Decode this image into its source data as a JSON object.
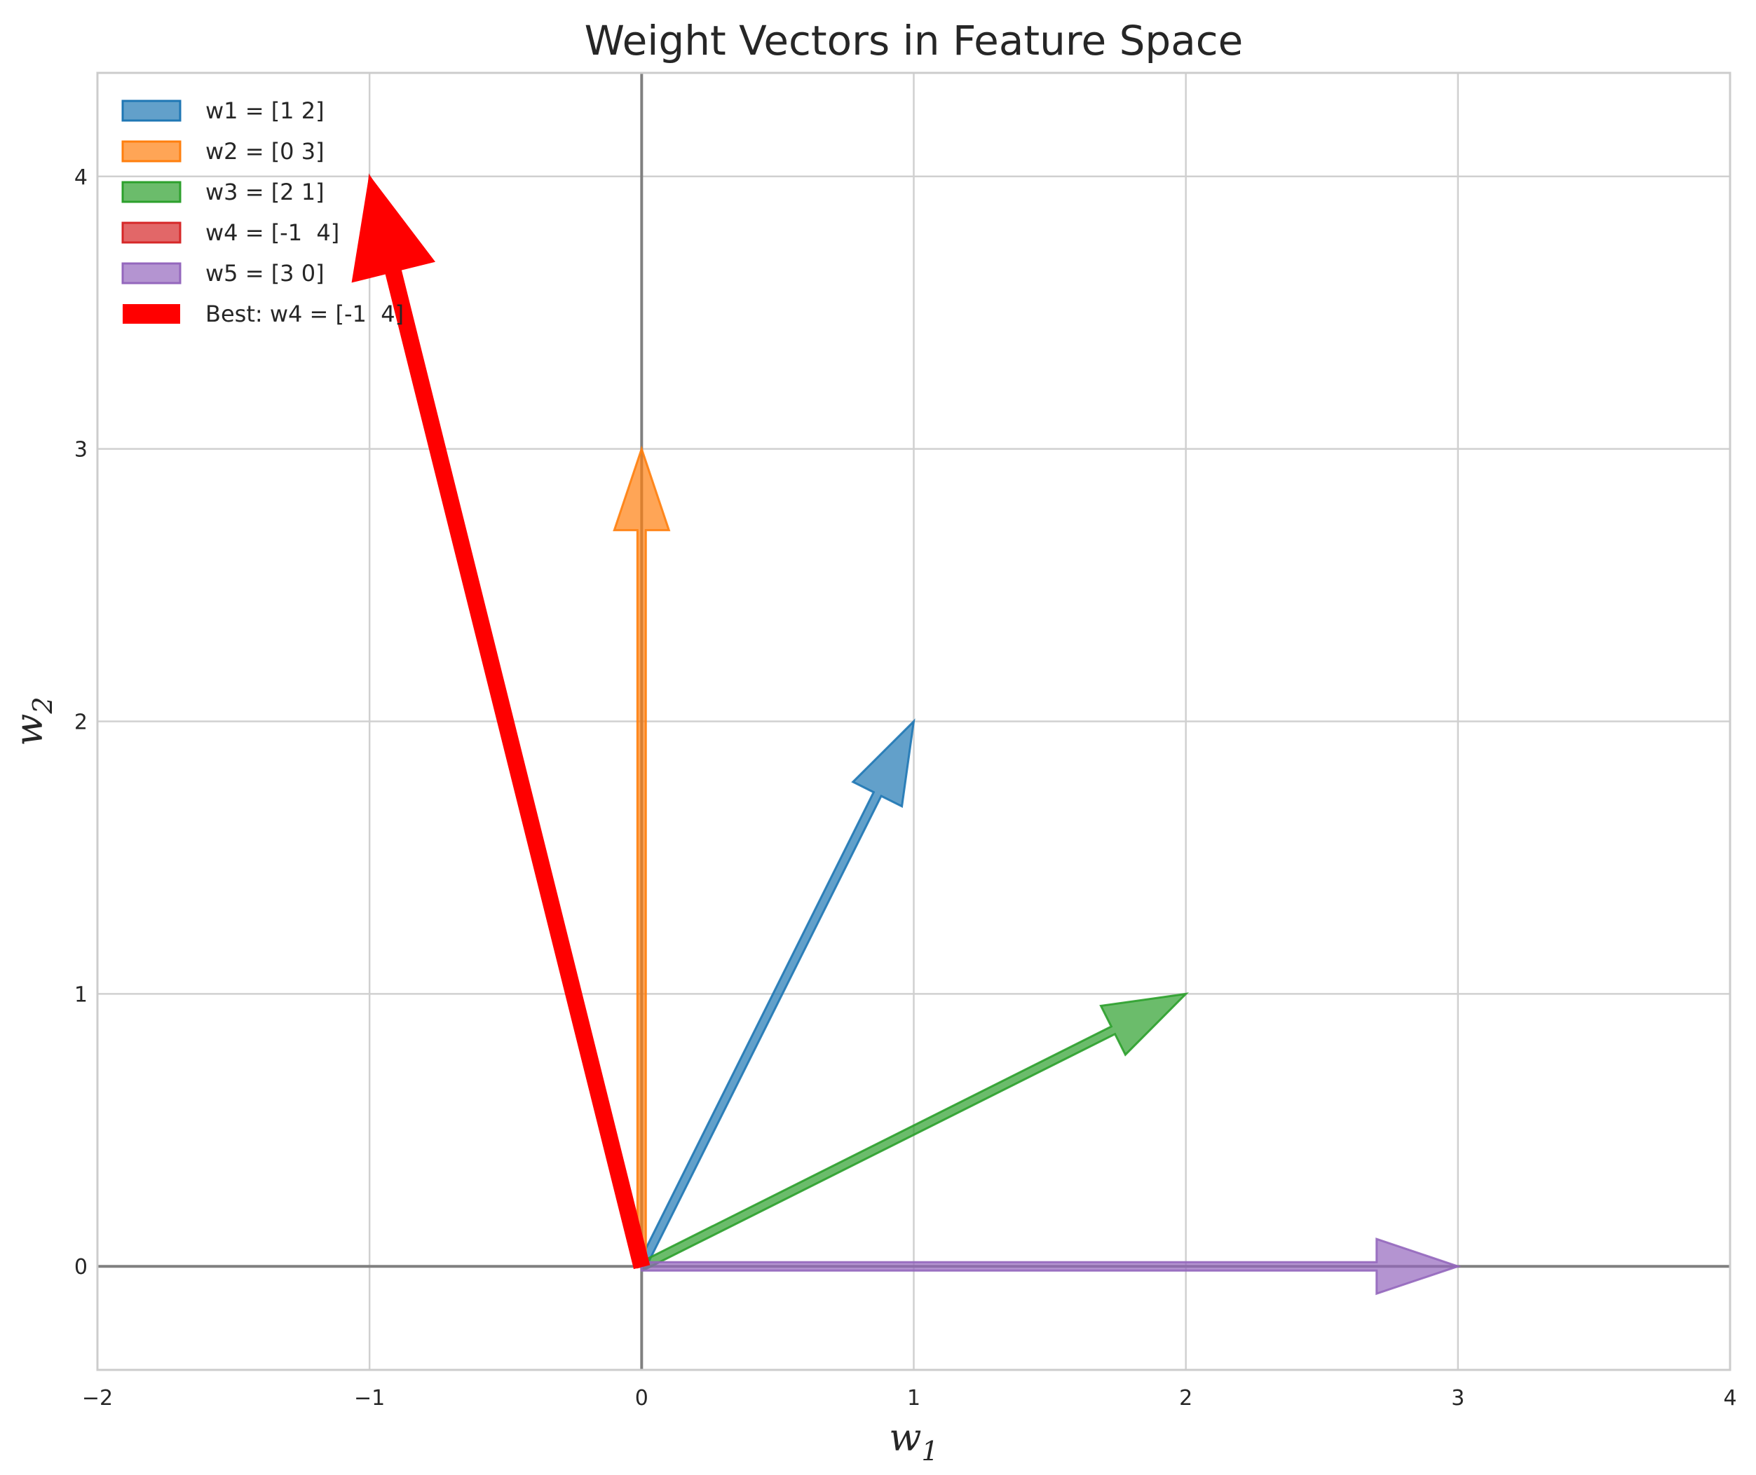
{
  "chart_data": {
    "type": "vector",
    "title": "Weight Vectors in Feature Space",
    "xlabel": "w",
    "xlabel_sub": "1",
    "ylabel": "w",
    "ylabel_sub": "2",
    "xlim": [
      -2,
      4
    ],
    "ylim": [
      -0.38,
      4.38
    ],
    "xticks": [
      -2,
      -1,
      0,
      1,
      2,
      3,
      4
    ],
    "yticks": [
      0,
      1,
      2,
      3,
      4
    ],
    "xtick_labels": [
      "−2",
      "−1",
      "0",
      "1",
      "2",
      "3",
      "4"
    ],
    "ytick_labels": [
      "0",
      "1",
      "2",
      "3",
      "4"
    ],
    "grid": true,
    "legend_position": "top-left",
    "origin_axes": true,
    "series": [
      {
        "name": "w1 = [1 2]",
        "x": 1,
        "y": 2,
        "color": "#1f77b4"
      },
      {
        "name": "w2 = [0 3]",
        "x": 0,
        "y": 3,
        "color": "#ff7f0e"
      },
      {
        "name": "w3 = [2 1]",
        "x": 2,
        "y": 1,
        "color": "#2ca02c"
      },
      {
        "name": "w4 = [-1  4]",
        "x": -1,
        "y": 4,
        "color": "#d62728"
      },
      {
        "name": "w5 = [3 0]",
        "x": 3,
        "y": 0,
        "color": "#9467bd"
      }
    ],
    "best": {
      "name": "Best: w4 = [-1  4]",
      "x": -1,
      "y": 4,
      "color": "#ff0000"
    }
  }
}
